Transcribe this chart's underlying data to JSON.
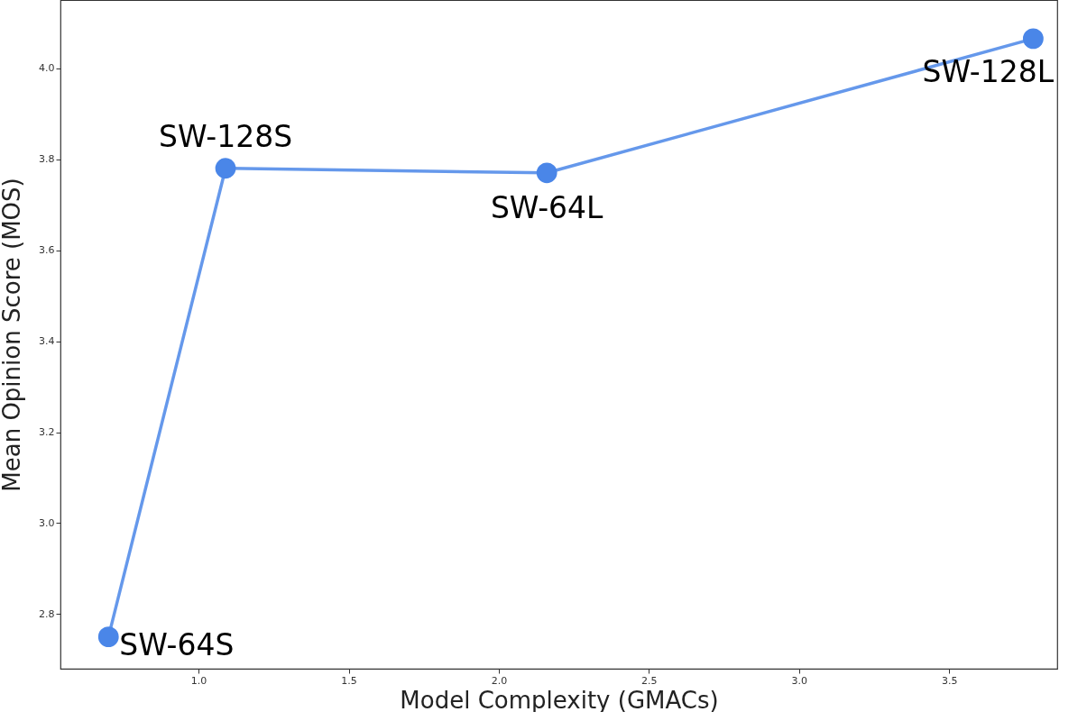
{
  "chart_data": {
    "type": "line",
    "xlabel": "Model Complexity (GMACs)",
    "ylabel": "Mean Opinion Score (MOS)",
    "x": [
      0.7,
      1.09,
      2.16,
      3.78
    ],
    "series": [
      {
        "color": "#4a86e8",
        "values": [
          2.75,
          3.78,
          3.77,
          4.065
        ]
      }
    ],
    "xlim": [
      0.54,
      3.86
    ],
    "ylim": [
      2.68,
      4.15
    ],
    "xticks": [
      {
        "value": 1.0,
        "label": "1.0"
      },
      {
        "value": 1.5,
        "label": "1.5"
      },
      {
        "value": 2.0,
        "label": "2.0"
      },
      {
        "value": 2.5,
        "label": "2.5"
      },
      {
        "value": 3.0,
        "label": "3.0"
      },
      {
        "value": 3.5,
        "label": "3.5"
      }
    ],
    "yticks": [
      {
        "value": 2.8,
        "label": "2.8"
      },
      {
        "value": 3.0,
        "label": "3.0"
      },
      {
        "value": 3.2,
        "label": "3.2"
      },
      {
        "value": 3.4,
        "label": "3.4"
      },
      {
        "value": 3.6,
        "label": "3.6"
      },
      {
        "value": 3.8,
        "label": "3.8"
      },
      {
        "value": 4.0,
        "label": "4.0"
      }
    ],
    "marker": "circle",
    "line_style": "solid",
    "grid": false,
    "annotations": [
      {
        "text": "SW-64S",
        "x": 0.7,
        "y": 2.75
      },
      {
        "text": "SW-128S",
        "x": 1.09,
        "y": 3.78
      },
      {
        "text": "SW-64L",
        "x": 2.16,
        "y": 3.77
      },
      {
        "text": "SW-128L",
        "x": 3.78,
        "y": 4.065
      }
    ]
  }
}
